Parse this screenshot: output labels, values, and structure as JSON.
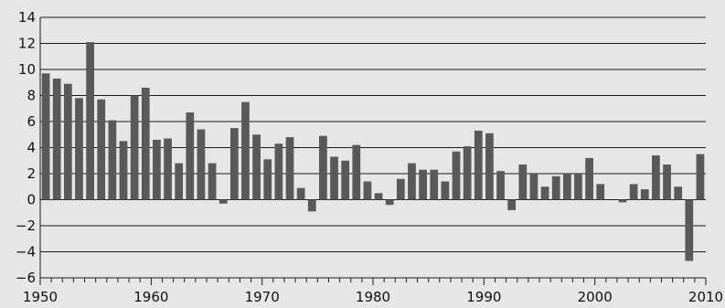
{
  "chart_data": {
    "type": "bar",
    "title": "",
    "xlabel": "",
    "ylabel": "",
    "xlim": [
      1950,
      2010
    ],
    "ylim": [
      -6,
      14
    ],
    "y_ticks": [
      -6,
      -4,
      -2,
      0,
      2,
      4,
      6,
      8,
      10,
      12,
      14
    ],
    "x_tick_labels": [
      1950,
      1960,
      1970,
      1980,
      1990,
      2000,
      2010
    ],
    "grid": "horizontal",
    "legend": "none",
    "colors": {
      "bar": "#595959",
      "background": "#e6e6e6",
      "grid": "#1a1a1a",
      "text": "#111111"
    },
    "x": [
      1951,
      1952,
      1953,
      1954,
      1955,
      1956,
      1957,
      1958,
      1959,
      1960,
      1961,
      1962,
      1963,
      1964,
      1965,
      1966,
      1967,
      1968,
      1969,
      1970,
      1971,
      1972,
      1973,
      1974,
      1975,
      1976,
      1977,
      1978,
      1979,
      1980,
      1981,
      1982,
      1983,
      1984,
      1985,
      1986,
      1987,
      1988,
      1989,
      1990,
      1991,
      1992,
      1993,
      1994,
      1995,
      1996,
      1997,
      1998,
      1999,
      2000,
      2001,
      2002,
      2003,
      2004,
      2005,
      2006,
      2007,
      2008,
      2009,
      2010
    ],
    "values": [
      9.7,
      9.3,
      8.9,
      7.8,
      12.1,
      7.7,
      6.1,
      4.5,
      8.0,
      8.6,
      4.6,
      4.7,
      2.8,
      6.7,
      5.4,
      2.8,
      -0.3,
      5.5,
      7.5,
      5.0,
      3.1,
      4.3,
      4.8,
      0.9,
      -0.9,
      4.9,
      3.3,
      3.0,
      4.2,
      1.4,
      0.5,
      -0.4,
      1.6,
      2.8,
      2.3,
      2.3,
      1.4,
      3.7,
      4.1,
      5.3,
      5.1,
      2.2,
      -0.8,
      2.7,
      2.0,
      1.0,
      1.8,
      2.0,
      2.0,
      3.2,
      1.2,
      0.0,
      -0.2,
      1.2,
      0.8,
      3.4,
      2.7,
      1.0,
      -4.7,
      3.5
    ]
  }
}
